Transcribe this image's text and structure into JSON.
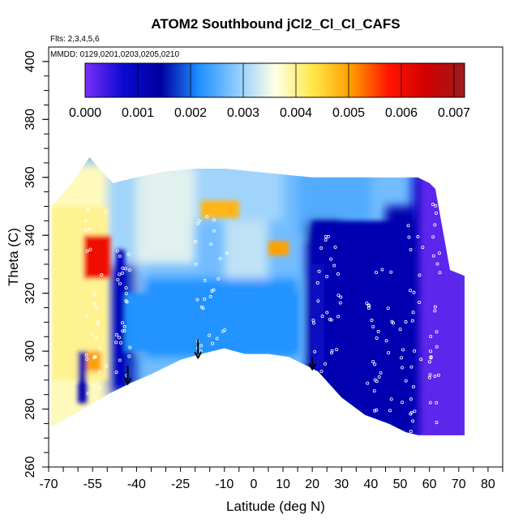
{
  "chart_data": {
    "type": "heatmap",
    "title": "ATOM2 Southbound jCl2_Cl_Cl_CAFS",
    "subtitle_flights": "Flts: 2,3,4,5,6",
    "subtitle_dates": "MMDD: 0129,0201,0203,0205,0210",
    "xlabel": "Latitude (deg N)",
    "ylabel": "Theta (C)",
    "xlim": [
      -70,
      85
    ],
    "ylim": [
      260,
      405
    ],
    "x_ticks": [
      -70,
      -55,
      -40,
      -25,
      -10,
      0,
      10,
      20,
      30,
      40,
      50,
      60,
      70,
      80
    ],
    "y_ticks": [
      260,
      280,
      300,
      320,
      340,
      360,
      380,
      400
    ],
    "colorbar": {
      "min": 0.0,
      "max": 0.0072,
      "ticks": [
        "0.000",
        "0.001",
        "0.002",
        "0.003",
        "0.004",
        "0.005",
        "0.006",
        "0.007"
      ],
      "tick_values": [
        0.0,
        0.001,
        0.002,
        0.003,
        0.004,
        0.005,
        0.006,
        0.007
      ],
      "colors": [
        "#7b2ff7",
        "#0a0ad0",
        "#0000a0",
        "#1e90ff",
        "#8ecbff",
        "#ffffe8",
        "#ffe84a",
        "#ff9d00",
        "#ff1500",
        "#d00000",
        "#9e1b1b"
      ]
    },
    "lower_boundary": {
      "lat": [
        -69,
        -60,
        -50,
        -42,
        -35,
        -25,
        -18,
        -10,
        -3,
        5,
        12,
        18,
        22,
        30,
        38,
        46,
        52,
        56
      ],
      "theta": [
        274,
        279,
        285,
        289,
        292,
        297,
        299,
        301,
        299,
        299,
        298,
        295,
        293,
        284,
        278,
        275,
        272,
        271
      ]
    },
    "upper_boundary": {
      "lat": [
        -69,
        -62,
        -56,
        -52,
        -48,
        -40,
        -30,
        -20,
        -10,
        0,
        10,
        20,
        30,
        40,
        50,
        56
      ],
      "theta": [
        350,
        358,
        367,
        362,
        358,
        360,
        362,
        363,
        363,
        362,
        361,
        360,
        360,
        360,
        360,
        360
      ]
    },
    "regions": [
      {
        "name": "southern high-latitude moderate values",
        "lat": [
          -69,
          -50
        ],
        "theta": [
          290,
          350
        ],
        "value": 0.004
      },
      {
        "name": "southern mid-latitude peak",
        "lat": [
          -58,
          -49
        ],
        "theta": [
          325,
          340
        ],
        "value": 0.006
      },
      {
        "name": "southern surface blob",
        "lat": [
          -57,
          -52
        ],
        "theta": [
          293,
          300
        ],
        "value": 0.005
      },
      {
        "name": "subtropical tongue",
        "lat": [
          -34,
          -28
        ],
        "theta": [
          310,
          318
        ],
        "value": 0.0048
      },
      {
        "name": "upper patch near -10",
        "lat": [
          -18,
          -5
        ],
        "theta": [
          346,
          352
        ],
        "value": 0.0048
      },
      {
        "name": "upper patch near 10",
        "lat": [
          5,
          12
        ],
        "theta": [
          333,
          338
        ],
        "value": 0.005
      },
      {
        "name": "tropical lower troposphere",
        "lat": [
          -45,
          15
        ],
        "theta": [
          300,
          320
        ],
        "value": 0.0022
      },
      {
        "name": "northern mid-latitudes",
        "lat": [
          20,
          55
        ],
        "theta": [
          275,
          345
        ],
        "value": 0.0012
      },
      {
        "name": "northern high latitudes",
        "lat": [
          58,
          72
        ],
        "theta": [
          268,
          360
        ],
        "value": 0.0002
      }
    ],
    "arrows": [
      {
        "lat": -43,
        "theta_top": 295,
        "theta_bottom": 289
      },
      {
        "lat": -19,
        "theta_top": 304,
        "theta_bottom": 298
      },
      {
        "lat": 20,
        "theta_top": 298,
        "theta_bottom": 294
      }
    ]
  }
}
